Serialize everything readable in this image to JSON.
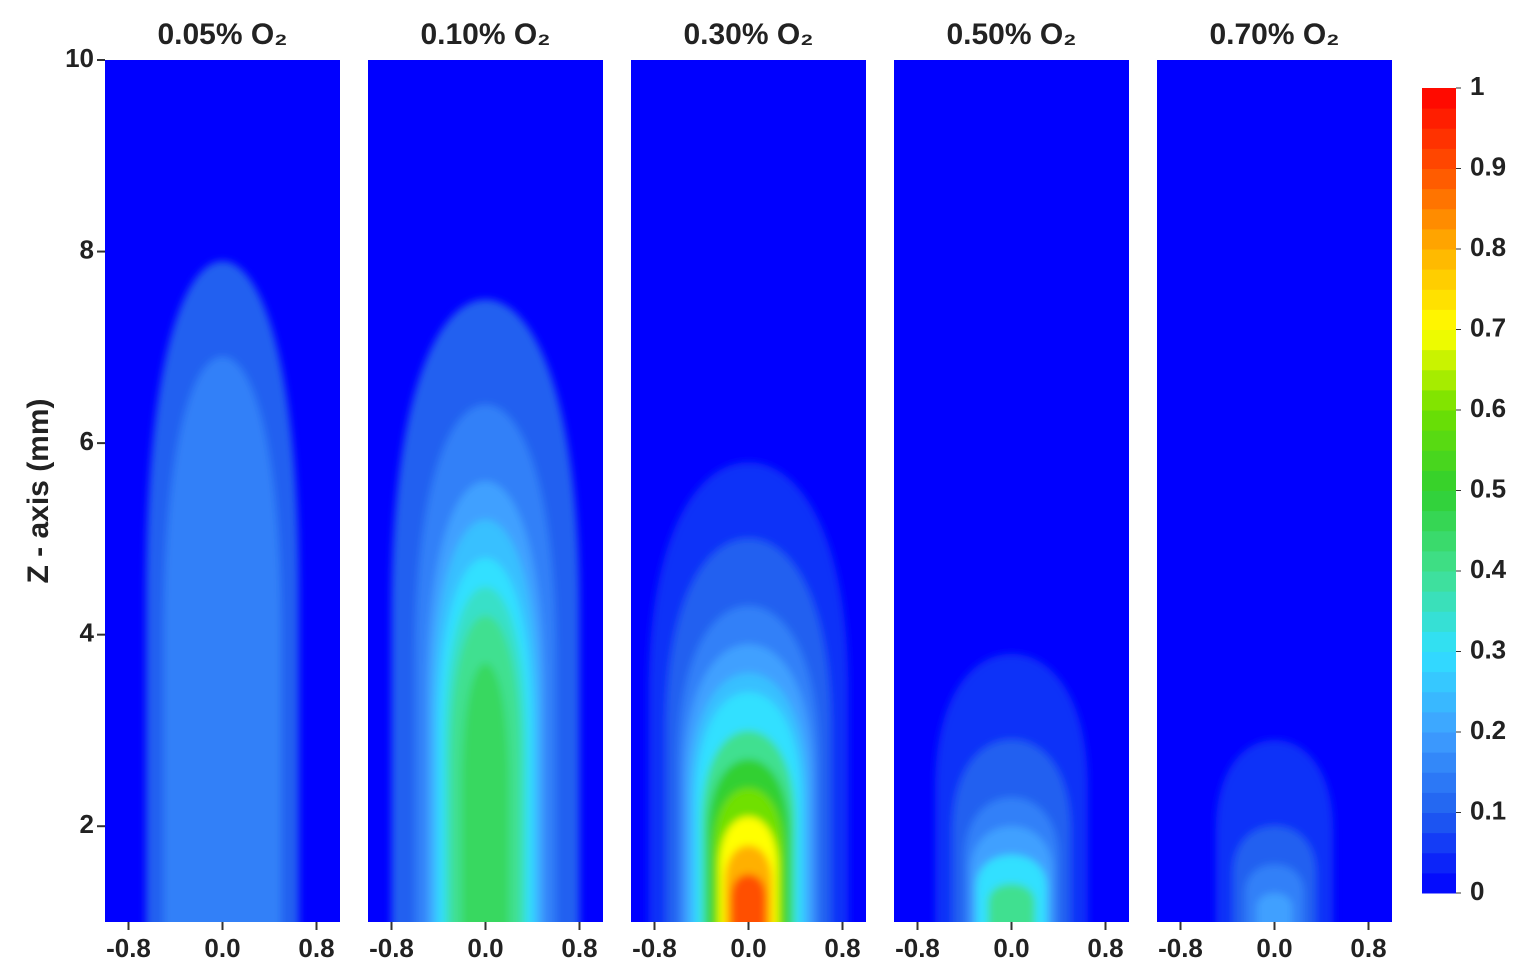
{
  "chart_data": {
    "type": "contour",
    "ylabel": "Z - axis (mm)",
    "xlim": [
      -1,
      1
    ],
    "xticks": [
      -0.8,
      {
        "value": 0,
        "label": "0.0"
      },
      0.8
    ],
    "ylim": [
      1,
      10
    ],
    "yticks": [
      2,
      4,
      6,
      8,
      10
    ],
    "clim": [
      0,
      1
    ],
    "cticks": [
      0,
      0.1,
      0.2,
      0.3,
      0.4,
      0.5,
      0.6,
      0.7,
      0.8,
      0.9,
      1
    ],
    "colors": [
      "#0000ff",
      "#2060f0",
      "#3fa0ff",
      "#30e0ff",
      "#40e090",
      "#30d030",
      "#70e000",
      "#ffff00",
      "#ffb000",
      "#ff5000",
      "#ff0000"
    ],
    "panels": [
      {
        "title": "0.05% O₂",
        "levels": [
          {
            "value": 0.1,
            "top": 7.9,
            "halfwidth": 0.65
          },
          {
            "value": 0.15,
            "top": 6.9,
            "halfwidth": 0.5
          }
        ]
      },
      {
        "title": "0.10% O₂",
        "levels": [
          {
            "value": 0.1,
            "top": 7.5,
            "halfwidth": 0.8
          },
          {
            "value": 0.15,
            "top": 6.4,
            "halfwidth": 0.6
          },
          {
            "value": 0.2,
            "top": 5.6,
            "halfwidth": 0.5
          },
          {
            "value": 0.25,
            "top": 5.2,
            "halfwidth": 0.45
          },
          {
            "value": 0.3,
            "top": 4.8,
            "halfwidth": 0.4
          },
          {
            "value": 0.35,
            "top": 4.5,
            "halfwidth": 0.35
          },
          {
            "value": 0.4,
            "top": 4.2,
            "halfwidth": 0.3
          },
          {
            "value": 0.45,
            "top": 3.7,
            "halfwidth": 0.2
          }
        ]
      },
      {
        "title": "0.30% O₂",
        "levels": [
          {
            "value": 0.05,
            "top": 5.8,
            "halfwidth": 0.85
          },
          {
            "value": 0.1,
            "top": 5.0,
            "halfwidth": 0.7
          },
          {
            "value": 0.15,
            "top": 4.3,
            "halfwidth": 0.6
          },
          {
            "value": 0.2,
            "top": 3.9,
            "halfwidth": 0.55
          },
          {
            "value": 0.25,
            "top": 3.6,
            "halfwidth": 0.5
          },
          {
            "value": 0.3,
            "top": 3.4,
            "halfwidth": 0.45
          },
          {
            "value": 0.4,
            "top": 3.0,
            "halfwidth": 0.4
          },
          {
            "value": 0.5,
            "top": 2.7,
            "halfwidth": 0.35
          },
          {
            "value": 0.6,
            "top": 2.4,
            "halfwidth": 0.3
          },
          {
            "value": 0.7,
            "top": 2.1,
            "halfwidth": 0.25
          },
          {
            "value": 0.8,
            "top": 1.8,
            "halfwidth": 0.2
          },
          {
            "value": 0.9,
            "top": 1.5,
            "halfwidth": 0.15
          }
        ]
      },
      {
        "title": "0.50% O₂",
        "levels": [
          {
            "value": 0.05,
            "top": 3.8,
            "halfwidth": 0.65
          },
          {
            "value": 0.1,
            "top": 2.9,
            "halfwidth": 0.5
          },
          {
            "value": 0.15,
            "top": 2.3,
            "halfwidth": 0.4
          },
          {
            "value": 0.2,
            "top": 2.0,
            "halfwidth": 0.35
          },
          {
            "value": 0.3,
            "top": 1.7,
            "halfwidth": 0.3
          },
          {
            "value": 0.4,
            "top": 1.4,
            "halfwidth": 0.2
          }
        ]
      },
      {
        "title": "0.70% O₂",
        "levels": [
          {
            "value": 0.05,
            "top": 2.9,
            "halfwidth": 0.5
          },
          {
            "value": 0.1,
            "top": 2.0,
            "halfwidth": 0.35
          },
          {
            "value": 0.15,
            "top": 1.6,
            "halfwidth": 0.25
          },
          {
            "value": 0.2,
            "top": 1.3,
            "halfwidth": 0.15
          }
        ]
      }
    ]
  }
}
